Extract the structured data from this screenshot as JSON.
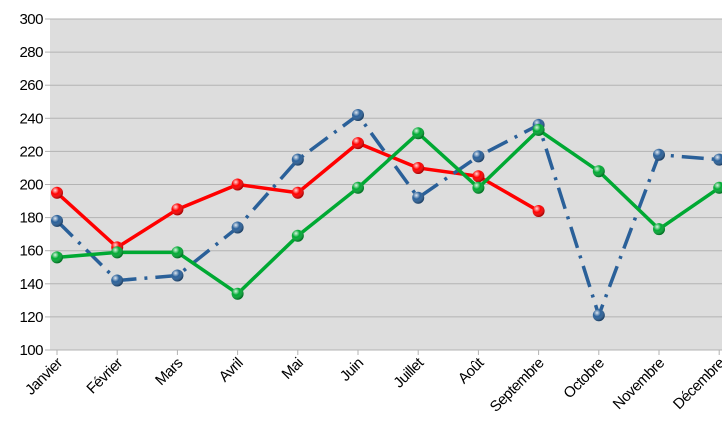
{
  "chart_data": {
    "type": "line",
    "categories": [
      "Janvier",
      "Février",
      "Mars",
      "Avril",
      "Mai",
      "Juin",
      "Juillet",
      "Août",
      "Septembre",
      "Octobre",
      "Novembre",
      "Décembre"
    ],
    "series": [
      {
        "color": "#ff0000",
        "style": "solid",
        "values": [
          195,
          162,
          185,
          200,
          195,
          225,
          210,
          205,
          184,
          null,
          null,
          null
        ]
      },
      {
        "color": "#2a6099",
        "style": "dash-dot",
        "values": [
          178,
          142,
          145,
          174,
          215,
          242,
          192,
          217,
          236,
          121,
          218,
          215
        ]
      },
      {
        "color": "#00a933",
        "style": "solid",
        "values": [
          156,
          159,
          159,
          134,
          169,
          198,
          231,
          198,
          233,
          208,
          173,
          198
        ]
      }
    ],
    "ylim": [
      100,
      300
    ],
    "yticks": [
      100,
      120,
      140,
      160,
      180,
      200,
      220,
      240,
      260,
      280,
      300
    ],
    "grid": true
  }
}
